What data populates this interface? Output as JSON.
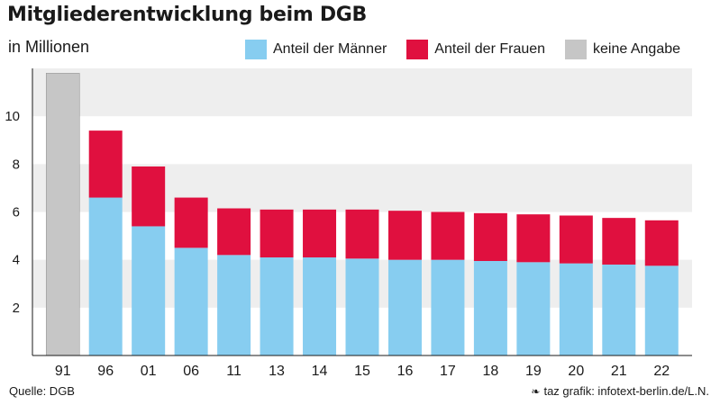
{
  "title": "Mitgliederentwicklung beim DGB",
  "subtitle": "in Millionen",
  "source": "Quelle: DGB",
  "credit": "taz grafik: infotext-berlin.de/L.N.",
  "colors": {
    "men": "#87cdf0",
    "women": "#e0103f",
    "unknown": "#c6c6c6",
    "band": "#eeeeee"
  },
  "chart_data": {
    "type": "bar",
    "stacked": true,
    "categories": [
      "91",
      "96",
      "01",
      "06",
      "11",
      "13",
      "14",
      "15",
      "16",
      "17",
      "18",
      "19",
      "20",
      "21",
      "22"
    ],
    "series": [
      {
        "name": "Anteil der Männer",
        "color": "#87cdf0",
        "values": [
          null,
          6.6,
          5.4,
          4.5,
          4.2,
          4.1,
          4.1,
          4.05,
          4.0,
          4.0,
          3.95,
          3.9,
          3.85,
          3.8,
          3.75
        ]
      },
      {
        "name": "Anteil der Frauen",
        "color": "#e0103f",
        "values": [
          null,
          2.8,
          2.5,
          2.1,
          1.95,
          2.0,
          2.0,
          2.05,
          2.05,
          2.0,
          2.0,
          2.0,
          2.0,
          1.95,
          1.9
        ]
      },
      {
        "name": "keine Angabe",
        "color": "#c6c6c6",
        "values": [
          11.8,
          null,
          null,
          null,
          null,
          null,
          null,
          null,
          null,
          null,
          null,
          null,
          null,
          null,
          null
        ]
      }
    ],
    "yticks": [
      2,
      4,
      6,
      8,
      10
    ],
    "ylim": [
      0,
      12
    ],
    "xlabel": "",
    "ylabel": "",
    "legend": "top-right",
    "grid": "alternating horizontal bands"
  }
}
